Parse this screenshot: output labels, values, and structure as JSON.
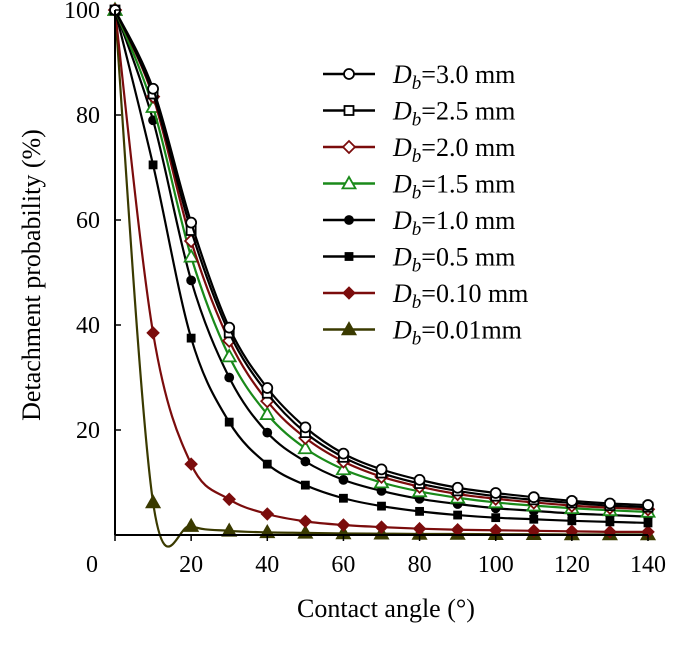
{
  "chart_data": {
    "type": "line",
    "xlabel": "Contact angle (°)",
    "ylabel": "Detachment probability (%)",
    "xlim": [
      0,
      140
    ],
    "ylim": [
      0,
      100
    ],
    "x_ticks": [
      0,
      20,
      40,
      60,
      80,
      100,
      120,
      140
    ],
    "y_ticks": [
      20,
      40,
      60,
      80,
      100
    ],
    "grid": false,
    "legend_position": "top-right",
    "x": [
      0,
      10,
      20,
      30,
      40,
      50,
      60,
      70,
      80,
      90,
      100,
      110,
      120,
      130,
      140
    ],
    "series": [
      {
        "name": "3.0 mm",
        "legend_prefix": "D",
        "legend_sub": "b",
        "legend_rest": "=3.0 mm",
        "color": "#000000",
        "marker": "circle-open",
        "values": [
          100,
          85,
          59.5,
          39.5,
          28,
          20.5,
          15.5,
          12.5,
          10.5,
          9,
          8,
          7.2,
          6.5,
          6.0,
          5.7
        ]
      },
      {
        "name": "2.5 mm",
        "legend_prefix": "D",
        "legend_sub": "b",
        "legend_rest": "=2.5 mm",
        "color": "#000000",
        "marker": "square-open",
        "values": [
          100,
          84,
          58,
          38.5,
          27,
          19.5,
          14.8,
          11.8,
          9.8,
          8.4,
          7.4,
          6.7,
          6.1,
          5.6,
          5.3
        ]
      },
      {
        "name": "2.0 mm",
        "legend_prefix": "D",
        "legend_sub": "b",
        "legend_rest": "=2.0 mm",
        "color": "#7b0c0c",
        "marker": "diamond-open",
        "values": [
          100,
          83.5,
          56,
          37,
          25.5,
          18.5,
          14.0,
          11.1,
          9.2,
          7.8,
          6.9,
          6.2,
          5.6,
          5.2,
          4.9
        ]
      },
      {
        "name": "1.5 mm",
        "legend_prefix": "D",
        "legend_sub": "b",
        "legend_rest": "=1.5 mm",
        "color": "#1a8a1a",
        "marker": "triangle-open",
        "values": [
          100,
          81.5,
          53,
          34,
          23,
          16.5,
          12.5,
          10.0,
          8.3,
          7.1,
          6.2,
          5.6,
          5.1,
          4.7,
          4.4
        ]
      },
      {
        "name": "1.0 mm",
        "legend_prefix": "D",
        "legend_sub": "b",
        "legend_rest": "=1.0 mm",
        "color": "#000000",
        "marker": "circle-filled",
        "values": [
          100,
          79,
          48.5,
          30,
          19.5,
          14.0,
          10.5,
          8.4,
          6.9,
          5.9,
          5.1,
          4.6,
          4.1,
          3.8,
          3.5
        ]
      },
      {
        "name": "0.5 mm",
        "legend_prefix": "D",
        "legend_sub": "b",
        "legend_rest": "=0.5 mm",
        "color": "#000000",
        "marker": "square-filled",
        "values": [
          100,
          70.5,
          37.5,
          21.5,
          13.5,
          9.5,
          7.0,
          5.5,
          4.5,
          3.8,
          3.3,
          3.0,
          2.7,
          2.5,
          2.3
        ]
      },
      {
        "name": "0.10 mm",
        "legend_prefix": "D",
        "legend_sub": "b",
        "legend_rest": "=0.10 mm",
        "color": "#7b0c0c",
        "marker": "diamond-filled",
        "values": [
          100,
          38.5,
          13.5,
          6.8,
          4.0,
          2.6,
          1.9,
          1.5,
          1.2,
          1.0,
          0.9,
          0.8,
          0.7,
          0.6,
          0.6
        ]
      },
      {
        "name": "0.01mm",
        "legend_prefix": "D",
        "legend_sub": "b",
        "legend_rest": "=0.01mm",
        "color": "#3a3a00",
        "marker": "triangle-filled",
        "values": [
          100,
          6.2,
          1.7,
          0.8,
          0.5,
          0.4,
          0.3,
          0.25,
          0.2,
          0.2,
          0.15,
          0.15,
          0.1,
          0.1,
          0.1
        ]
      }
    ]
  }
}
